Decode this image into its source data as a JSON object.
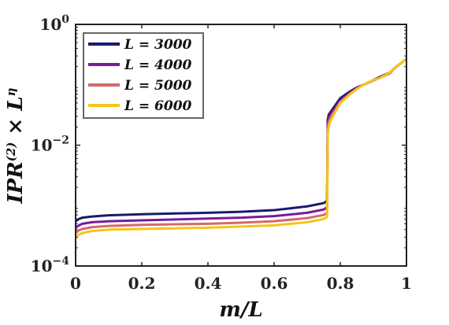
{
  "chart_data": {
    "type": "line",
    "xlabel": "m/L",
    "ylabel": "IPR^(2) × L^η",
    "xlim": [
      0,
      1
    ],
    "ylim": [
      0.0001,
      1
    ],
    "yscale": "log",
    "x_ticks": [
      0,
      0.2,
      0.4,
      0.6,
      0.8,
      1
    ],
    "x_tick_labels": [
      "0",
      "0.2",
      "0.4",
      "0.6",
      "0.8",
      "1"
    ],
    "y_ticks": [
      0.0001,
      0.01,
      1
    ],
    "y_tick_labels": [
      {
        "base": "10",
        "exp": "−4"
      },
      {
        "base": "10",
        "exp": "−2"
      },
      {
        "base": "10",
        "exp": "0"
      }
    ],
    "grid": false,
    "legend_position": "top-left",
    "series": [
      {
        "name": "L = 3000",
        "color": "#1a1a6e",
        "x": [
          0,
          0.01,
          0.02,
          0.05,
          0.1,
          0.2,
          0.3,
          0.4,
          0.5,
          0.6,
          0.7,
          0.75,
          0.76,
          0.762,
          0.765,
          0.77,
          0.78,
          0.8,
          0.83,
          0.85,
          0.87,
          0.9,
          0.92,
          0.95,
          0.96,
          0.97,
          0.98,
          1.0
        ],
        "y": [
          0.00055,
          0.0006,
          0.00063,
          0.00066,
          0.00069,
          0.00072,
          0.00074,
          0.00076,
          0.00079,
          0.00084,
          0.00097,
          0.0011,
          0.0012,
          0.026,
          0.032,
          0.035,
          0.042,
          0.06,
          0.078,
          0.09,
          0.1,
          0.12,
          0.135,
          0.16,
          0.18,
          0.2,
          0.22,
          0.27
        ]
      },
      {
        "name": "L = 4000",
        "color": "#7a1a9a",
        "x": [
          0,
          0.01,
          0.02,
          0.05,
          0.1,
          0.2,
          0.3,
          0.4,
          0.5,
          0.6,
          0.7,
          0.75,
          0.76,
          0.762,
          0.765,
          0.77,
          0.78,
          0.8,
          0.83,
          0.85,
          0.87,
          0.9,
          0.92,
          0.95,
          0.96,
          0.97,
          0.98,
          1.0
        ],
        "y": [
          0.00043,
          0.00047,
          0.0005,
          0.00053,
          0.00055,
          0.00057,
          0.00059,
          0.00061,
          0.00063,
          0.00067,
          0.00076,
          0.00086,
          0.00094,
          0.022,
          0.028,
          0.032,
          0.038,
          0.055,
          0.074,
          0.088,
          0.1,
          0.118,
          0.132,
          0.155,
          0.18,
          0.2,
          0.22,
          0.27
        ]
      },
      {
        "name": "L = 5000",
        "color": "#d46a6a",
        "x": [
          0,
          0.01,
          0.02,
          0.05,
          0.1,
          0.2,
          0.3,
          0.4,
          0.5,
          0.6,
          0.7,
          0.75,
          0.76,
          0.762,
          0.765,
          0.77,
          0.78,
          0.8,
          0.83,
          0.85,
          0.87,
          0.9,
          0.92,
          0.95,
          0.96,
          0.97,
          0.98,
          1.0
        ],
        "y": [
          0.00035,
          0.00039,
          0.00041,
          0.00044,
          0.00046,
          0.00048,
          0.00049,
          0.0005,
          0.00052,
          0.00055,
          0.00062,
          0.0007,
          0.00076,
          0.018,
          0.024,
          0.028,
          0.035,
          0.052,
          0.072,
          0.086,
          0.1,
          0.118,
          0.13,
          0.155,
          0.18,
          0.2,
          0.22,
          0.27
        ]
      },
      {
        "name": "L = 6000",
        "color": "#f5c518",
        "x": [
          0,
          0.01,
          0.02,
          0.05,
          0.1,
          0.2,
          0.3,
          0.4,
          0.5,
          0.6,
          0.7,
          0.75,
          0.76,
          0.762,
          0.765,
          0.77,
          0.78,
          0.8,
          0.83,
          0.85,
          0.87,
          0.9,
          0.92,
          0.95,
          0.96,
          0.97,
          0.98,
          1.0
        ],
        "y": [
          0.0003,
          0.00033,
          0.00035,
          0.00038,
          0.0004,
          0.00041,
          0.00042,
          0.00043,
          0.00045,
          0.00047,
          0.00053,
          0.0006,
          0.00065,
          0.015,
          0.02,
          0.025,
          0.032,
          0.05,
          0.07,
          0.085,
          0.1,
          0.12,
          0.13,
          0.16,
          0.18,
          0.2,
          0.22,
          0.27
        ]
      }
    ]
  }
}
